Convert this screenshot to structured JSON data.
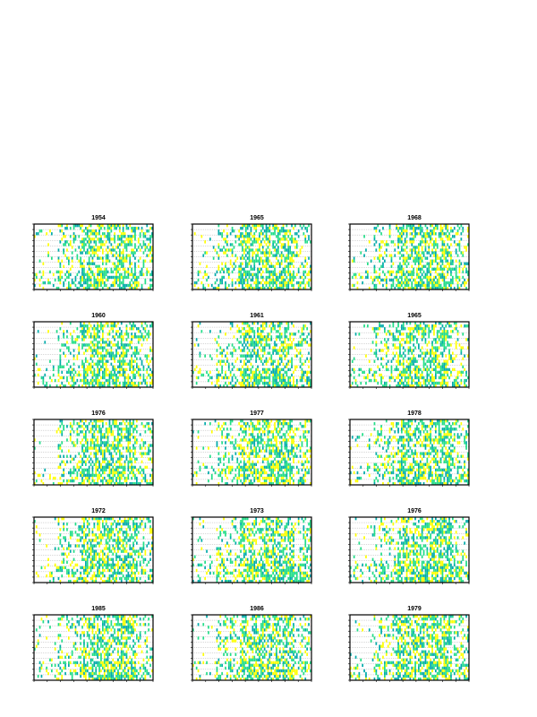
{
  "chart_data": [
    {
      "type": "heatmap",
      "title": "1954"
    },
    {
      "type": "heatmap",
      "title": "1965"
    },
    {
      "type": "heatmap",
      "title": "1968"
    },
    {
      "type": "heatmap",
      "title": "1960"
    },
    {
      "type": "heatmap",
      "title": "1961"
    },
    {
      "type": "heatmap",
      "title": "1965"
    },
    {
      "type": "heatmap",
      "title": "1976"
    },
    {
      "type": "heatmap",
      "title": "1977"
    },
    {
      "type": "heatmap",
      "title": "1978"
    },
    {
      "type": "heatmap",
      "title": "1972"
    },
    {
      "type": "heatmap",
      "title": "1973"
    },
    {
      "type": "heatmap",
      "title": "1976"
    },
    {
      "type": "heatmap",
      "title": "1985"
    },
    {
      "type": "heatmap",
      "title": "1986"
    },
    {
      "type": "heatmap",
      "title": "1979"
    }
  ],
  "colors": {
    "high": "#ffff00",
    "mid": "#22dd88",
    "low": "#00aaaa",
    "axis": "#000000",
    "grid": "#9a9a9a"
  }
}
